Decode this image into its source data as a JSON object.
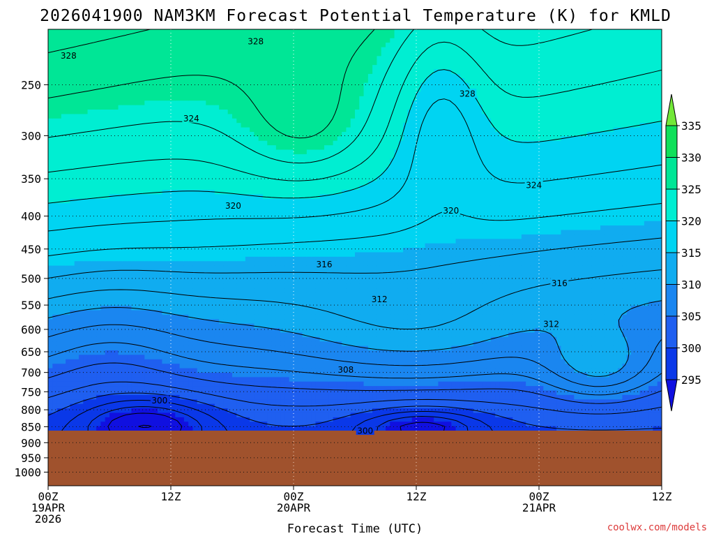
{
  "chart_data": {
    "type": "heatmap",
    "title": "2026041900 NAM3KM Forecast Potential Temperature (K) for KMLD",
    "xlabel": "Forecast Time (UTC)",
    "ylabel": "",
    "x_hours": [
      0,
      12,
      24,
      36,
      48,
      60
    ],
    "x_ticks": [
      {
        "hour": 0,
        "l1": "00Z",
        "l2": "19APR",
        "l3": "2026"
      },
      {
        "hour": 12,
        "l1": "12Z",
        "l2": "",
        "l3": ""
      },
      {
        "hour": 24,
        "l1": "00Z",
        "l2": "20APR",
        "l3": ""
      },
      {
        "hour": 36,
        "l1": "12Z",
        "l2": "",
        "l3": ""
      },
      {
        "hour": 48,
        "l1": "00Z",
        "l2": "21APR",
        "l3": ""
      },
      {
        "hour": 60,
        "l1": "12Z",
        "l2": "",
        "l3": ""
      }
    ],
    "xlim": [
      0,
      60
    ],
    "y_pressure_ticks": [
      250,
      300,
      350,
      400,
      450,
      500,
      550,
      600,
      650,
      700,
      750,
      800,
      850,
      900,
      950,
      1000
    ],
    "y_tick_labels": [
      "250",
      "300",
      "350",
      "400",
      "450",
      "500",
      "550",
      "600",
      "650",
      "700",
      "750",
      "800",
      "850",
      "900",
      "950",
      "1000"
    ],
    "ylim_hPa": [
      205,
      1050
    ],
    "surface_pressure_hPa": 862,
    "colorbar": {
      "levels": [
        295,
        300,
        305,
        310,
        315,
        320,
        325,
        330,
        335
      ],
      "labels": [
        "295",
        "300",
        "305",
        "310",
        "315",
        "320",
        "325",
        "330",
        "335"
      ],
      "colors": [
        "#1010e0",
        "#0a38e8",
        "#1f5ff0",
        "#1a86f0",
        "#10acf0",
        "#00d4f2",
        "#00eed2",
        "#00e696",
        "#10e05a",
        "#72e838"
      ]
    },
    "contour_interval_K": 2,
    "contour_labels": [
      {
        "value": "328",
        "hour": 2.0,
        "p": 225
      },
      {
        "value": "328",
        "hour": 20.3,
        "p": 214
      },
      {
        "value": "328",
        "hour": 41.0,
        "p": 258
      },
      {
        "value": "324",
        "hour": 14.0,
        "p": 282
      },
      {
        "value": "324",
        "hour": 47.5,
        "p": 358
      },
      {
        "value": "320",
        "hour": 18.1,
        "p": 385
      },
      {
        "value": "320",
        "hour": 39.4,
        "p": 392
      },
      {
        "value": "316",
        "hour": 27.0,
        "p": 475
      },
      {
        "value": "316",
        "hour": 50.0,
        "p": 508
      },
      {
        "value": "312",
        "hour": 32.4,
        "p": 538
      },
      {
        "value": "312",
        "hour": 49.2,
        "p": 588
      },
      {
        "value": "308",
        "hour": 29.1,
        "p": 693
      },
      {
        "value": "300",
        "hour": 10.9,
        "p": 773
      },
      {
        "value": "300",
        "hour": 31.0,
        "p": 862
      }
    ],
    "ground_color": "#a0522d"
  },
  "credit": "coolwx.com/models"
}
